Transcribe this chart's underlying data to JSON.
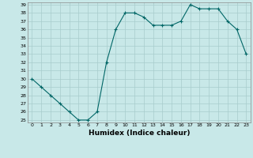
{
  "x": [
    0,
    1,
    2,
    3,
    4,
    5,
    6,
    7,
    8,
    9,
    10,
    11,
    12,
    13,
    14,
    15,
    16,
    17,
    18,
    19,
    20,
    21,
    22,
    23
  ],
  "y": [
    30,
    29,
    28,
    27,
    26,
    25,
    25,
    26,
    32,
    36,
    38,
    38,
    37.5,
    36.5,
    36.5,
    36.5,
    37,
    39,
    38.5,
    38.5,
    38.5,
    37,
    36,
    33
  ],
  "xlabel": "Humidex (Indice chaleur)",
  "ylim": [
    25,
    39
  ],
  "xlim": [
    -0.5,
    23.5
  ],
  "yticks": [
    25,
    26,
    27,
    28,
    29,
    30,
    31,
    32,
    33,
    34,
    35,
    36,
    37,
    38,
    39
  ],
  "xticks": [
    0,
    1,
    2,
    3,
    4,
    5,
    6,
    7,
    8,
    9,
    10,
    11,
    12,
    13,
    14,
    15,
    16,
    17,
    18,
    19,
    20,
    21,
    22,
    23
  ],
  "line_color": "#006666",
  "marker": "+",
  "bg_color": "#c8e8e8",
  "grid_color": "#a8cccc",
  "spine_color": "#888888",
  "tick_fontsize": 4.5,
  "xlabel_fontsize": 6.5,
  "linewidth": 0.8,
  "markersize": 3,
  "markeredgewidth": 0.8
}
